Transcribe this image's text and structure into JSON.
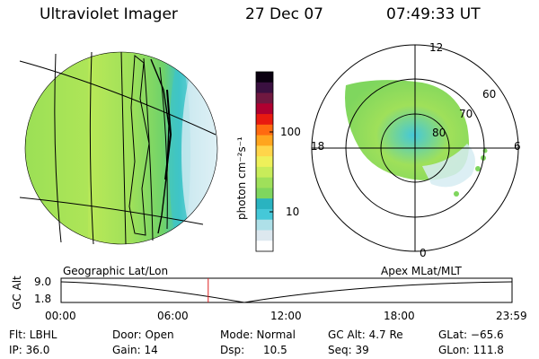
{
  "header": {
    "instrument": "Ultraviolet Imager",
    "date": "27 Dec 07",
    "time": "07:49:33 UT"
  },
  "colorbar": {
    "unit_label": "photon cm⁻²s⁻¹",
    "ticks": [
      "100",
      "10"
    ],
    "colors": [
      "#ffffff",
      "#dde8ef",
      "#aee0e8",
      "#45c8d8",
      "#2ab3c0",
      "#7fd65e",
      "#9fe05a",
      "#c8ec5a",
      "#eef05a",
      "#ffd54a",
      "#ffa51e",
      "#ff6a10",
      "#e81a10",
      "#b00030",
      "#701840",
      "#3a1040",
      "#0a0010"
    ]
  },
  "map_labels": {
    "left": "Geographic Lat/Lon",
    "right": "Apex MLat/MLT"
  },
  "polar": {
    "mlt_labels": [
      "12",
      "18",
      "6",
      "0"
    ],
    "lat_labels": [
      "60",
      "70",
      "80"
    ]
  },
  "altitude_plot": {
    "ylabel": "GC Alt",
    "yticks": [
      "9.0",
      "1.8"
    ],
    "xticks": [
      "00:00",
      "06:00",
      "12:00",
      "18:00",
      "23:59"
    ],
    "current_time_hours": 7.83
  },
  "info": {
    "filter": "Flt: LBHL",
    "ip": "IP: 36.0",
    "door": "Door: Open",
    "gain": "Gain: 14",
    "mode": "Mode: Normal",
    "dsp_label": "Dsp:",
    "dsp_value": "10.5",
    "gc_alt": "GC Alt: 4.7 Re",
    "seq": "Seq: 39",
    "glat": "GLat: −65.6",
    "glon": "GLon: 111.8"
  }
}
